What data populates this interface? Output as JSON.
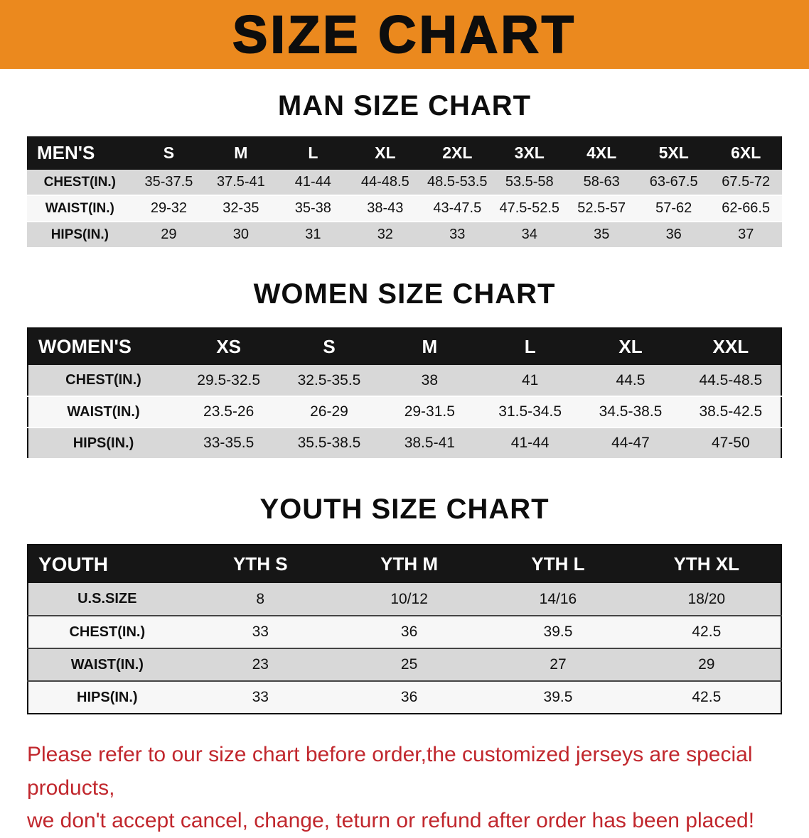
{
  "banner": {
    "title": "SIZE CHART"
  },
  "colors": {
    "banner-orange": "#EB891E",
    "header-black": "#161616",
    "row-gray": "#D8D8D8",
    "disclaimer-red": "#C1272D"
  },
  "sections": [
    {
      "heading": "MAN SIZE CHART",
      "table": {
        "header": [
          "MEN'S",
          "S",
          "M",
          "L",
          "XL",
          "2XL",
          "3XL",
          "4XL",
          "5XL",
          "6XL"
        ],
        "rows": [
          [
            "CHEST(IN.)",
            "35-37.5",
            "37.5-41",
            "41-44",
            "44-48.5",
            "48.5-53.5",
            "53.5-58",
            "58-63",
            "63-67.5",
            "67.5-72"
          ],
          [
            "WAIST(IN.)",
            "29-32",
            "32-35",
            "35-38",
            "38-43",
            "43-47.5",
            "47.5-52.5",
            "52.5-57",
            "57-62",
            "62-66.5"
          ],
          [
            "HIPS(IN.)",
            "29",
            "30",
            "31",
            "32",
            "33",
            "34",
            "35",
            "36",
            "37"
          ]
        ]
      }
    },
    {
      "heading": "WOMEN SIZE CHART",
      "table": {
        "header": [
          "WOMEN'S",
          "XS",
          "S",
          "M",
          "L",
          "XL",
          "XXL"
        ],
        "rows": [
          [
            "CHEST(IN.)",
            "29.5-32.5",
            "32.5-35.5",
            "38",
            "41",
            "44.5",
            "44.5-48.5"
          ],
          [
            "WAIST(IN.)",
            "23.5-26",
            "26-29",
            "29-31.5",
            "31.5-34.5",
            "34.5-38.5",
            "38.5-42.5"
          ],
          [
            "HIPS(IN.)",
            "33-35.5",
            "35.5-38.5",
            "38.5-41",
            "41-44",
            "44-47",
            "47-50"
          ]
        ]
      }
    },
    {
      "heading": "YOUTH SIZE CHART",
      "table": {
        "header": [
          "YOUTH",
          "YTH S",
          "YTH M",
          "YTH L",
          "YTH XL"
        ],
        "rows": [
          [
            "U.S.SIZE",
            "8",
            "10/12",
            "14/16",
            "18/20"
          ],
          [
            "CHEST(IN.)",
            "33",
            "36",
            "39.5",
            "42.5"
          ],
          [
            "WAIST(IN.)",
            "23",
            "25",
            "27",
            "29"
          ],
          [
            "HIPS(IN.)",
            "33",
            "36",
            "39.5",
            "42.5"
          ]
        ]
      }
    }
  ],
  "disclaimer": {
    "line1": "Please refer to our size chart before order,the customized jerseys are special products,",
    "line2": "we don't accept cancel, change, teturn or refund after order has been placed!"
  }
}
